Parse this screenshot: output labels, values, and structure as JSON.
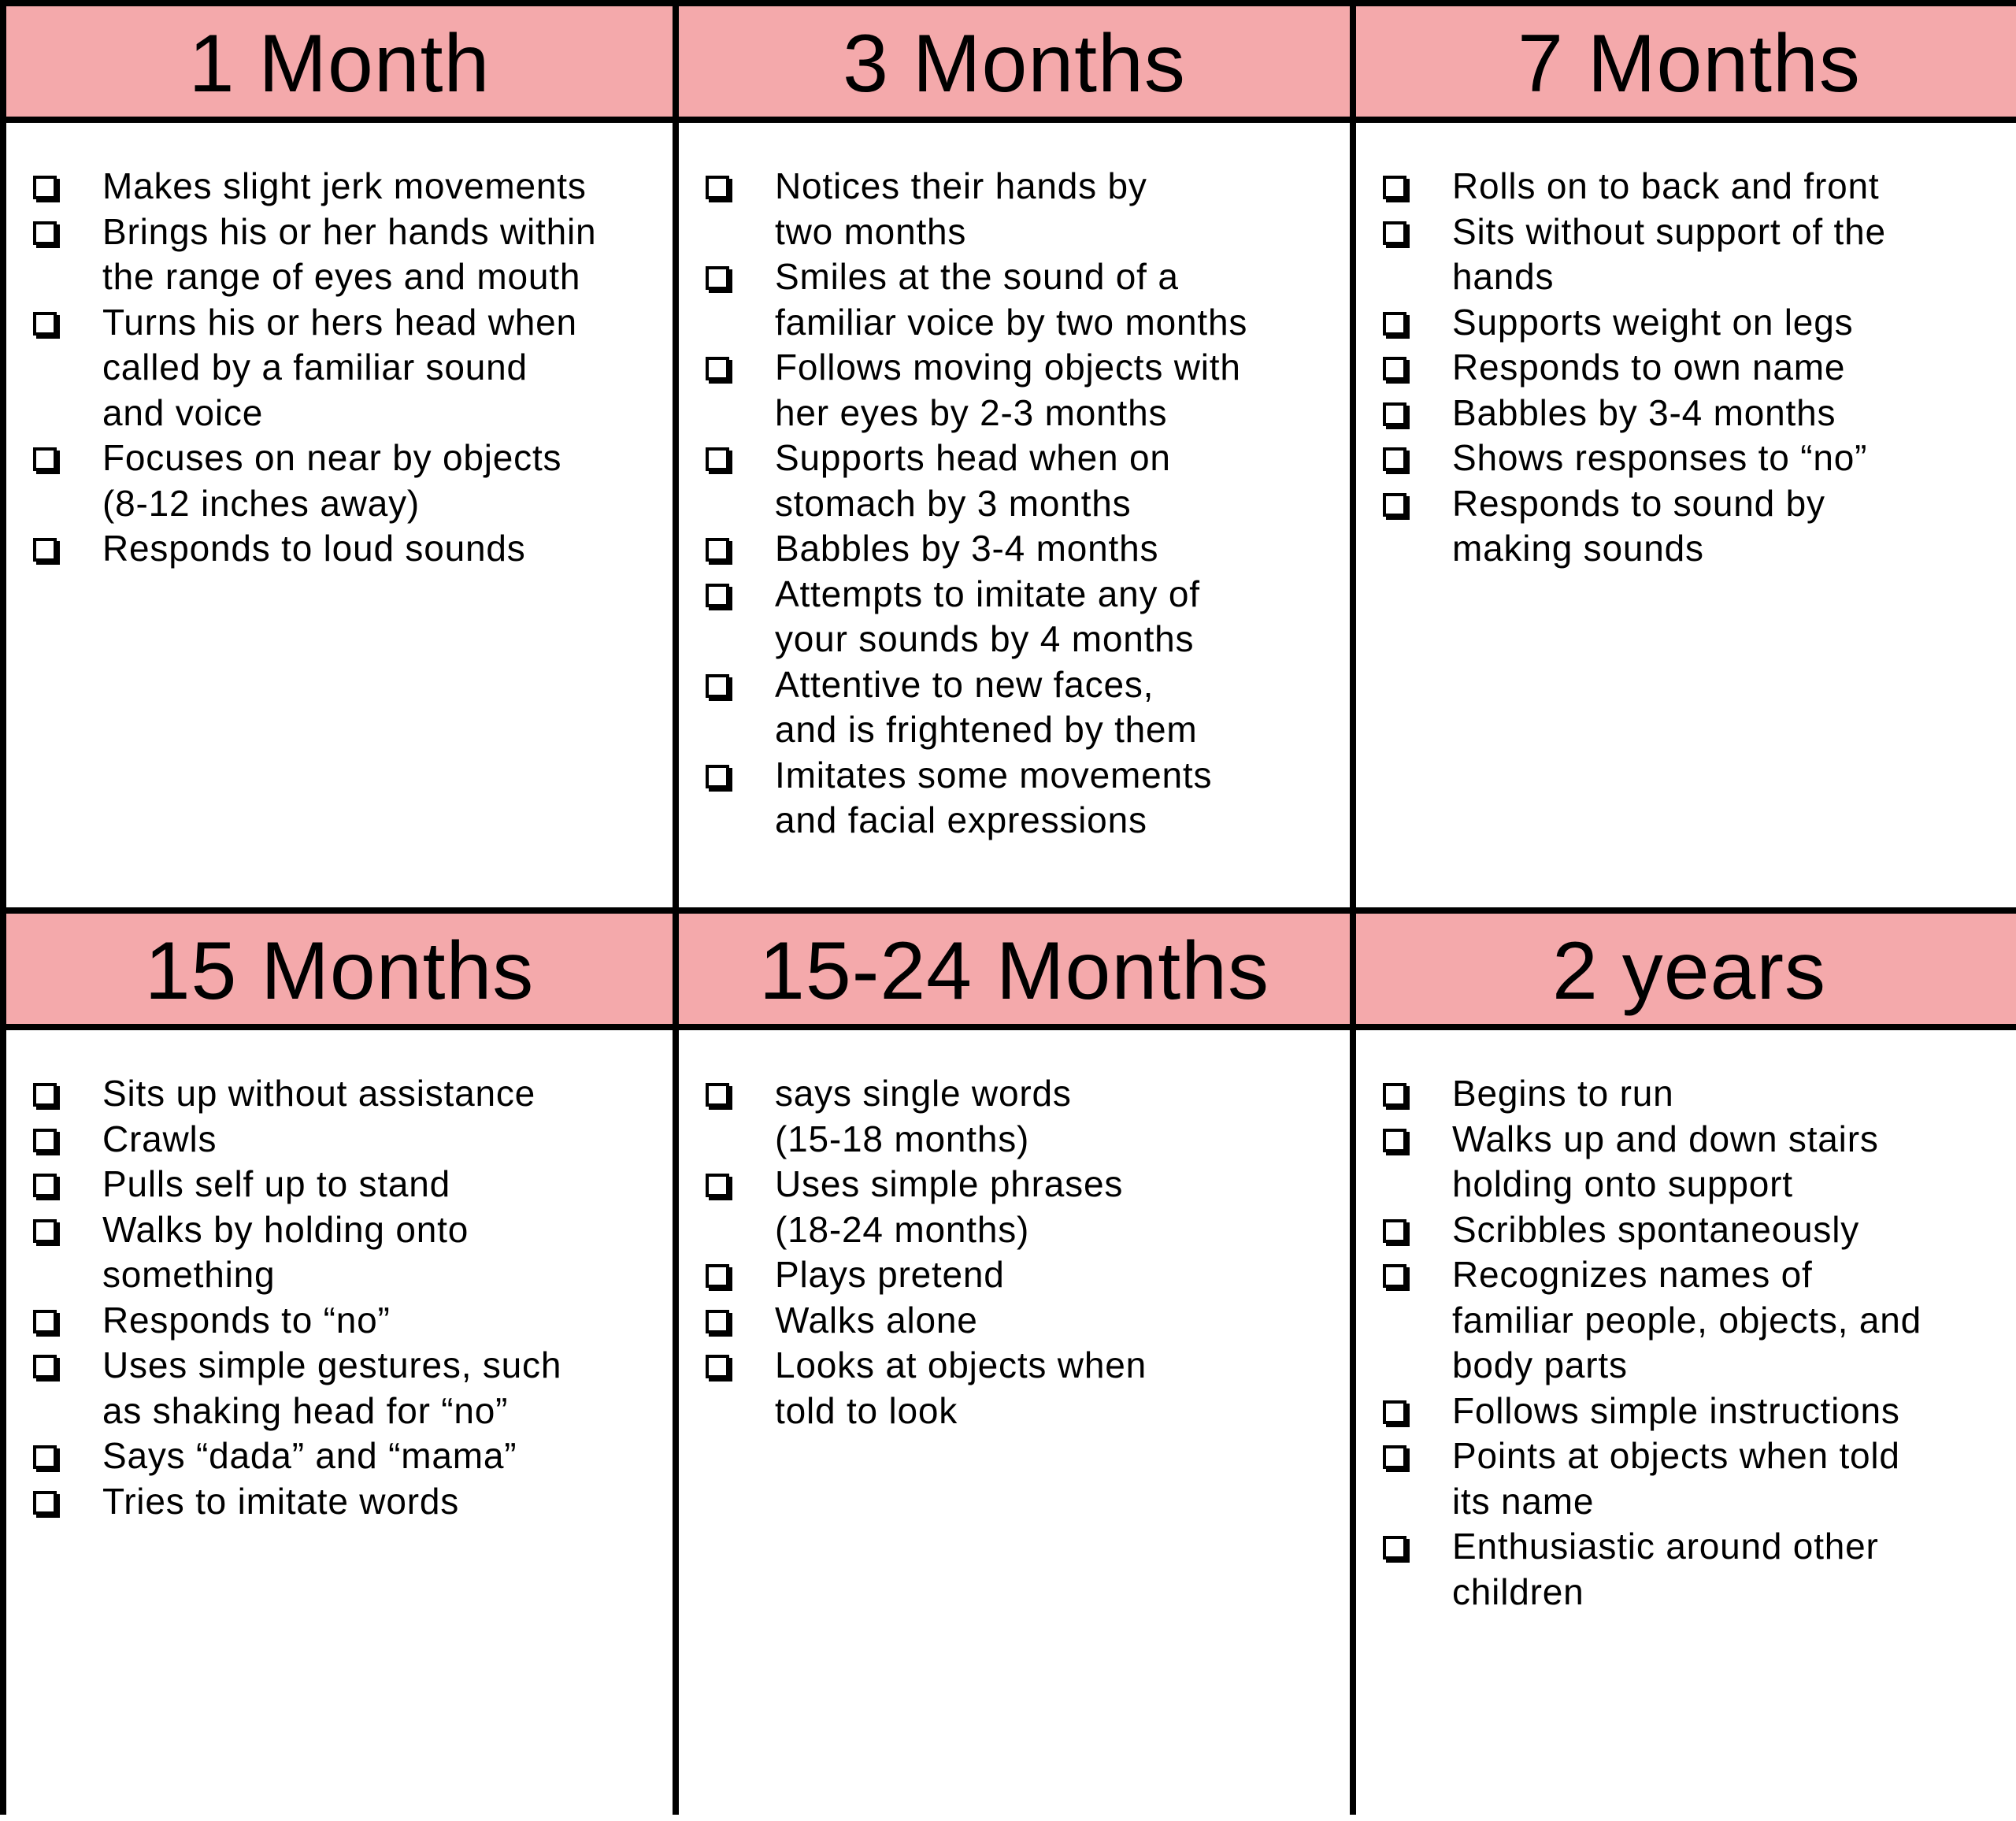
{
  "colors": {
    "header_bg": "#f4a9ab",
    "border": "#000000"
  },
  "sections": [
    {
      "title": "1 Month",
      "items": [
        "Makes slight jerk movements",
        "Brings his or her hands within\nthe range of eyes and mouth",
        "Turns his or hers head when\ncalled by a familiar sound\nand voice",
        "Focuses on near by objects\n(8-12 inches away)",
        "Responds to loud sounds"
      ]
    },
    {
      "title": "3 Months",
      "items": [
        "Notices their hands by\ntwo months",
        "Smiles at the sound of a\nfamiliar voice by two months",
        "Follows moving objects with\nher eyes by 2-3 months",
        "Supports head when on\nstomach by 3 months",
        "Babbles by 3-4 months",
        "Attempts to imitate any of\nyour sounds by 4 months",
        "Attentive to new faces,\nand is frightened by them",
        "Imitates some movements\nand facial expressions"
      ]
    },
    {
      "title": "7 Months",
      "items": [
        "Rolls on to back and front",
        "Sits without support of the\nhands",
        "Supports weight on legs",
        "Responds to own name",
        "Babbles by 3-4 months",
        "Shows responses to “no”",
        "Responds to sound by\nmaking sounds"
      ]
    },
    {
      "title": "15 Months",
      "items": [
        "Sits up without assistance",
        "Crawls",
        "Pulls self up to stand",
        "Walks by holding onto\nsomething",
        "Responds to “no”",
        "Uses simple gestures, such\nas shaking head for “no”",
        "Says “dada” and “mama”",
        "Tries to imitate words"
      ]
    },
    {
      "title": "15-24 Months",
      "items": [
        "says single words\n(15-18 months)",
        "Uses simple phrases\n(18-24 months)",
        "Plays pretend",
        "Walks alone",
        "Looks at objects when\ntold to look"
      ]
    },
    {
      "title": "2 years",
      "items": [
        "Begins to run",
        "Walks up and down stairs\nholding onto support",
        "Scribbles spontaneously",
        "Recognizes names of\nfamiliar people, objects, and\nbody parts",
        "Follows simple instructions",
        "Points at objects when told\nits name",
        "Enthusiastic around other\nchildren"
      ]
    }
  ]
}
